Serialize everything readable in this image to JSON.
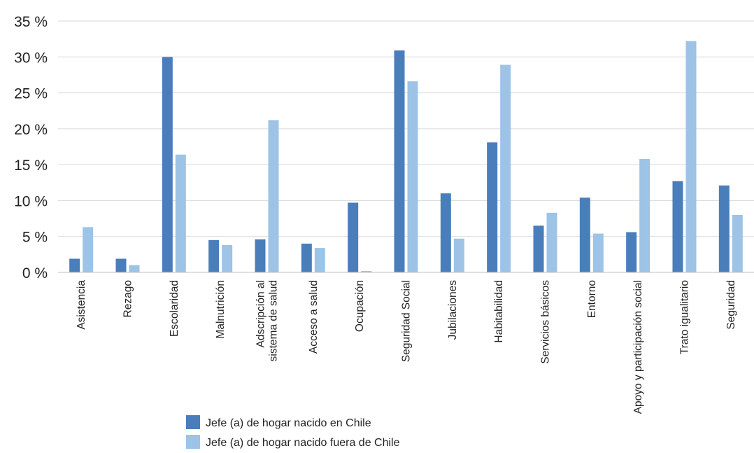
{
  "chart_data": {
    "type": "bar",
    "title": "",
    "xlabel": "",
    "ylabel": "",
    "ylim": [
      0,
      35
    ],
    "yticks": [
      0,
      5,
      10,
      15,
      20,
      25,
      30,
      35
    ],
    "ytick_suffix": " %",
    "grid": true,
    "legend_position": "bottom-center",
    "categories": [
      [
        "Asistencia"
      ],
      [
        "Rezago"
      ],
      [
        "Escolaridad"
      ],
      [
        "Malnutrición"
      ],
      [
        "Adscripción al",
        "sistema de salud"
      ],
      [
        "Acceso a salud"
      ],
      [
        "Ocupación"
      ],
      [
        "Seguridad Social"
      ],
      [
        "Jubilaciones"
      ],
      [
        "Habitabilidad"
      ],
      [
        "Servicios básicos"
      ],
      [
        "Entorno"
      ],
      [
        "Apoyo y participación social"
      ],
      [
        "Trato igualitario"
      ],
      [
        "Seguridad"
      ]
    ],
    "series": [
      {
        "name": "Jefe (a) de hogar nacido en Chile",
        "color": "#4a7ebb",
        "values": [
          1.9,
          1.9,
          30.0,
          4.5,
          4.6,
          4.0,
          9.7,
          30.9,
          11.0,
          18.1,
          6.5,
          10.4,
          5.6,
          12.7,
          12.1
        ]
      },
      {
        "name": "Jefe (a) de hogar nacido fuera de Chile",
        "color": "#9dc3e6",
        "values": [
          6.3,
          1.0,
          16.4,
          3.8,
          21.2,
          3.4,
          0.2,
          26.6,
          4.7,
          28.9,
          8.3,
          5.4,
          15.8,
          32.2,
          8.0
        ]
      }
    ]
  }
}
